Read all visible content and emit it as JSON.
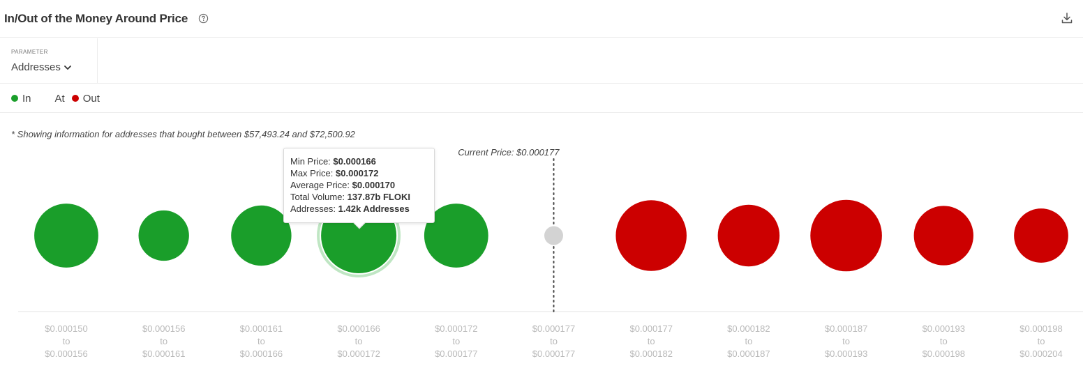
{
  "header": {
    "title": "In/Out of the Money Around Price",
    "help_icon": "question-circle-icon",
    "download_icon": "download-icon"
  },
  "parameter": {
    "label": "PARAMETER",
    "value": "Addresses",
    "icon": "chevron-down-icon"
  },
  "legend": [
    {
      "label": "In",
      "color": "#1a9e2a"
    },
    {
      "label": "At",
      "color": "#c8c8c8"
    },
    {
      "label": "Out",
      "color": "#cc0000"
    }
  ],
  "note": "* Showing information for addresses that bought between $57,493.24 and $72,500.92",
  "tooltip": {
    "rows": [
      {
        "label": "Min Price:",
        "value": "$0.000166"
      },
      {
        "label": "Max Price:",
        "value": "$0.000172"
      },
      {
        "label": "Average Price:",
        "value": "$0.000170"
      },
      {
        "label": "Total Volume:",
        "value": "137.87b FLOKI"
      },
      {
        "label": "Addresses:",
        "value": "1.42k Addresses"
      }
    ]
  },
  "chart_data": {
    "type": "scatter",
    "current_price_label": "Current Price: $0.000177",
    "colors": {
      "in": "#1a9e2a",
      "at": "#d3d3d3",
      "out": "#cc0000"
    },
    "buckets": [
      {
        "from": "$0.000150",
        "to": "$0.000156",
        "status": "in",
        "size": 0.85
      },
      {
        "from": "$0.000156",
        "to": "$0.000161",
        "status": "in",
        "size": 0.67
      },
      {
        "from": "$0.000161",
        "to": "$0.000166",
        "status": "in",
        "size": 0.8
      },
      {
        "from": "$0.000166",
        "to": "$0.000172",
        "status": "in",
        "size": 1.0,
        "highlighted": true
      },
      {
        "from": "$0.000172",
        "to": "$0.000177",
        "status": "in",
        "size": 0.85
      },
      {
        "from": "$0.000177",
        "to": "$0.000177",
        "status": "at",
        "size": 0.25
      },
      {
        "from": "$0.000177",
        "to": "$0.000182",
        "status": "out",
        "size": 0.94
      },
      {
        "from": "$0.000182",
        "to": "$0.000187",
        "status": "out",
        "size": 0.82
      },
      {
        "from": "$0.000187",
        "to": "$0.000193",
        "status": "out",
        "size": 0.95
      },
      {
        "from": "$0.000193",
        "to": "$0.000198",
        "status": "out",
        "size": 0.79
      },
      {
        "from": "$0.000198",
        "to": "$0.000204",
        "status": "out",
        "size": 0.72
      }
    ],
    "tick_connector": "to"
  }
}
